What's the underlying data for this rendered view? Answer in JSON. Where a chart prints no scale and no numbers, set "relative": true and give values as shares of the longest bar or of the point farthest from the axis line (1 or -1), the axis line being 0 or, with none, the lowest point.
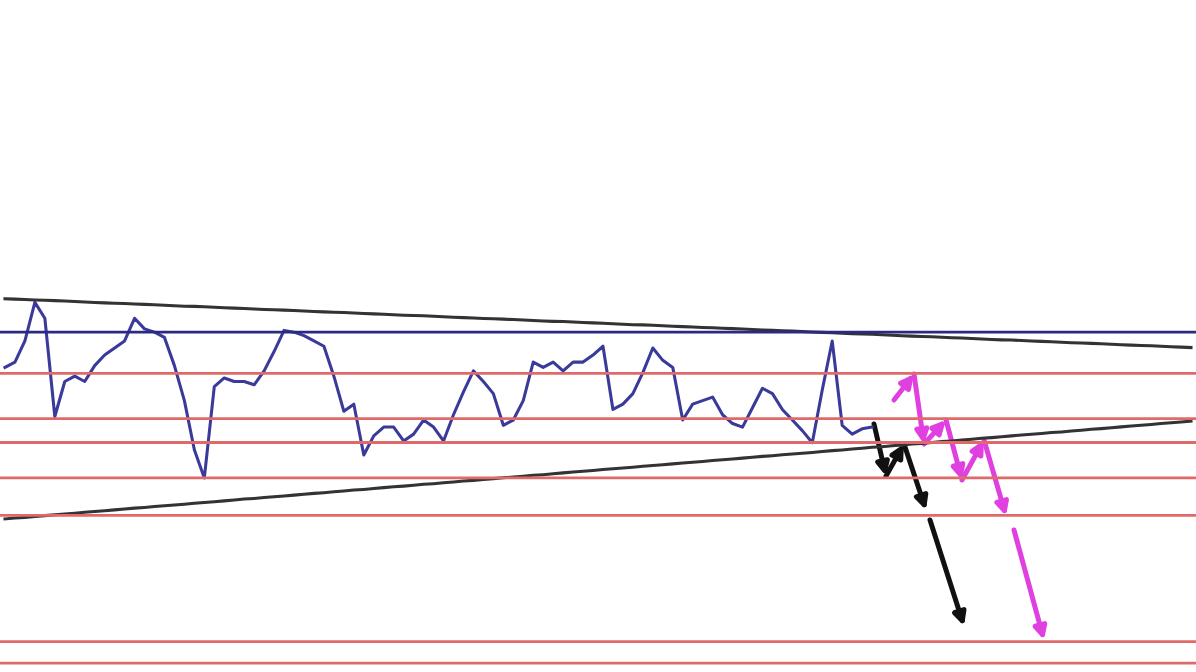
{
  "chart_data": {
    "type": "line",
    "relative": true,
    "categories": [
      null,
      null,
      null,
      null,
      null,
      null,
      null,
      null,
      null,
      null,
      null,
      null,
      null,
      null,
      null,
      null,
      null,
      null,
      null,
      null,
      null,
      null,
      null,
      null,
      null,
      null,
      null,
      null,
      null,
      null,
      null,
      null,
      null,
      null,
      null,
      null,
      null,
      null,
      null,
      null,
      null,
      null,
      null,
      null,
      null,
      null,
      null,
      null,
      null,
      null,
      null,
      null,
      null,
      null,
      null,
      null,
      null,
      null,
      null,
      null,
      null,
      null,
      null,
      null,
      null,
      null,
      null,
      null,
      null,
      null,
      null,
      null,
      null,
      null,
      null,
      null,
      null,
      null,
      null,
      null,
      null,
      null,
      null,
      null,
      null,
      null,
      null,
      null,
      null,
      null,
      null,
      null,
      null,
      null,
      null,
      null,
      null,
      null,
      null,
      null,
      null,
      null,
      null,
      null,
      null,
      null,
      null,
      null,
      null,
      null,
      null,
      null,
      null,
      null,
      null,
      null,
      null,
      null,
      null,
      null
    ],
    "series": [
      {
        "color": "#3a3a9a",
        "values": [
          0.688,
          0.712,
          0.808,
          0.983,
          0.911,
          0.465,
          0.624,
          0.648,
          0.624,
          0.696,
          0.744,
          0.776,
          0.808,
          0.911,
          0.863,
          0.848,
          0.824,
          0.696,
          0.537,
          0.314,
          0.186,
          0.601,
          0.64,
          0.624,
          0.624,
          0.609,
          0.672,
          0.76,
          0.856,
          0.848,
          0.832,
          0.808,
          0.784,
          0.648,
          0.489,
          0.521,
          0.29,
          0.377,
          0.417,
          0.417,
          0.354,
          0.385,
          0.449,
          0.417,
          0.354,
          0.473,
          0.577,
          0.672,
          0.624,
          0.569,
          0.425,
          0.449,
          0.537,
          0.712,
          0.688,
          0.712,
          0.672,
          0.712,
          0.712,
          0.744,
          0.784,
          0.497,
          0.521,
          0.569,
          0.664,
          0.776,
          0.72,
          0.688,
          0.449,
          0.521,
          0.537,
          0.553,
          0.473,
          0.433,
          0.417,
          0.505,
          0.593,
          0.569,
          0.497,
          0.449,
          0.401,
          0.346,
          0.585,
          0.808,
          0.425,
          0.385,
          0.409,
          0.417,
          null,
          null,
          null,
          null,
          null,
          null,
          null,
          null,
          null,
          null,
          null,
          null,
          null,
          null,
          null,
          null,
          null,
          null,
          null,
          null,
          null,
          null,
          null,
          null,
          null,
          null,
          null,
          null,
          null,
          null,
          null,
          null
        ]
      },
      {
        "color": "#333333",
        "values": [
          1.0,
          0.998,
          0.996,
          0.994,
          0.993,
          0.991,
          0.989,
          0.987,
          0.985,
          0.983,
          0.981,
          0.979,
          0.978,
          0.976,
          0.974,
          0.972,
          0.97,
          0.968,
          0.966,
          0.965,
          0.963,
          0.961,
          0.959,
          0.957,
          0.955,
          0.953,
          0.951,
          0.95,
          0.948,
          0.946,
          0.944,
          0.942,
          0.94,
          0.938,
          0.937,
          0.935,
          0.933,
          0.931,
          0.929,
          0.927,
          0.925,
          0.924,
          0.922,
          0.92,
          0.918,
          0.916,
          0.914,
          0.912,
          0.91,
          0.909,
          0.907,
          0.905,
          0.903,
          0.901,
          0.899,
          0.897,
          0.896,
          0.894,
          0.892,
          0.89,
          0.888,
          0.886,
          0.884,
          0.882,
          0.881,
          0.879,
          0.877,
          0.875,
          0.873,
          0.871,
          0.869,
          0.868,
          0.866,
          0.864,
          0.862,
          0.86,
          0.858,
          0.856,
          0.854,
          0.853,
          0.851,
          0.849,
          0.847,
          0.845,
          0.843,
          0.841,
          0.84,
          0.838,
          0.836,
          0.834,
          0.832,
          0.83,
          0.828,
          0.827,
          0.825,
          0.823,
          0.821,
          0.819,
          0.817,
          0.815,
          0.813,
          0.812,
          0.81,
          0.808,
          0.806,
          0.804,
          0.802,
          0.8,
          0.799,
          0.797,
          0.795,
          0.793,
          0.791,
          0.789,
          0.787,
          0.786,
          0.784,
          0.782,
          0.78,
          0.778
        ]
      },
      {
        "color": "#333333",
        "values": [
          0.0,
          0.004,
          0.007,
          0.011,
          0.015,
          0.019,
          0.022,
          0.026,
          0.03,
          0.034,
          0.037,
          0.041,
          0.045,
          0.049,
          0.052,
          0.056,
          0.06,
          0.063,
          0.067,
          0.071,
          0.075,
          0.078,
          0.082,
          0.086,
          0.09,
          0.093,
          0.097,
          0.101,
          0.104,
          0.108,
          0.112,
          0.116,
          0.119,
          0.123,
          0.127,
          0.131,
          0.134,
          0.138,
          0.142,
          0.146,
          0.149,
          0.153,
          0.157,
          0.16,
          0.164,
          0.168,
          0.172,
          0.175,
          0.179,
          0.183,
          0.187,
          0.19,
          0.194,
          0.198,
          0.201,
          0.205,
          0.209,
          0.213,
          0.216,
          0.22,
          0.224,
          0.228,
          0.231,
          0.235,
          0.239,
          0.243,
          0.246,
          0.25,
          0.254,
          0.257,
          0.261,
          0.265,
          0.269,
          0.272,
          0.276,
          0.28,
          0.284,
          0.287,
          0.291,
          0.295,
          0.298,
          0.302,
          0.306,
          0.31,
          0.313,
          0.317,
          0.321,
          0.325,
          0.328,
          0.332,
          0.336,
          0.34,
          0.343,
          0.347,
          0.351,
          0.354,
          0.358,
          0.362,
          0.366,
          0.369,
          0.373,
          0.377,
          0.381,
          0.384,
          0.388,
          0.392,
          0.395,
          0.399,
          0.403,
          0.407,
          0.41,
          0.414,
          0.418,
          0.422,
          0.425,
          0.429,
          0.433,
          0.437,
          0.44,
          0.444
        ]
      }
    ],
    "ref_lines": [
      {
        "axis": "y",
        "value": 0.848,
        "color": "#2a2a80"
      },
      {
        "axis": "y",
        "value": 0.661,
        "color": "#e06a6a"
      },
      {
        "axis": "y",
        "value": 0.455,
        "color": "#e06a6a"
      },
      {
        "axis": "y",
        "value": 0.347,
        "color": "#e06a6a"
      },
      {
        "axis": "y",
        "value": 0.186,
        "color": "#e06a6a"
      },
      {
        "axis": "y",
        "value": 0.016,
        "color": "#e06a6a"
      },
      {
        "axis": "y",
        "value": -0.557,
        "color": "#e06a6a"
      },
      {
        "axis": "y",
        "value": -0.655,
        "color": "#e06a6a"
      }
    ]
  }
}
